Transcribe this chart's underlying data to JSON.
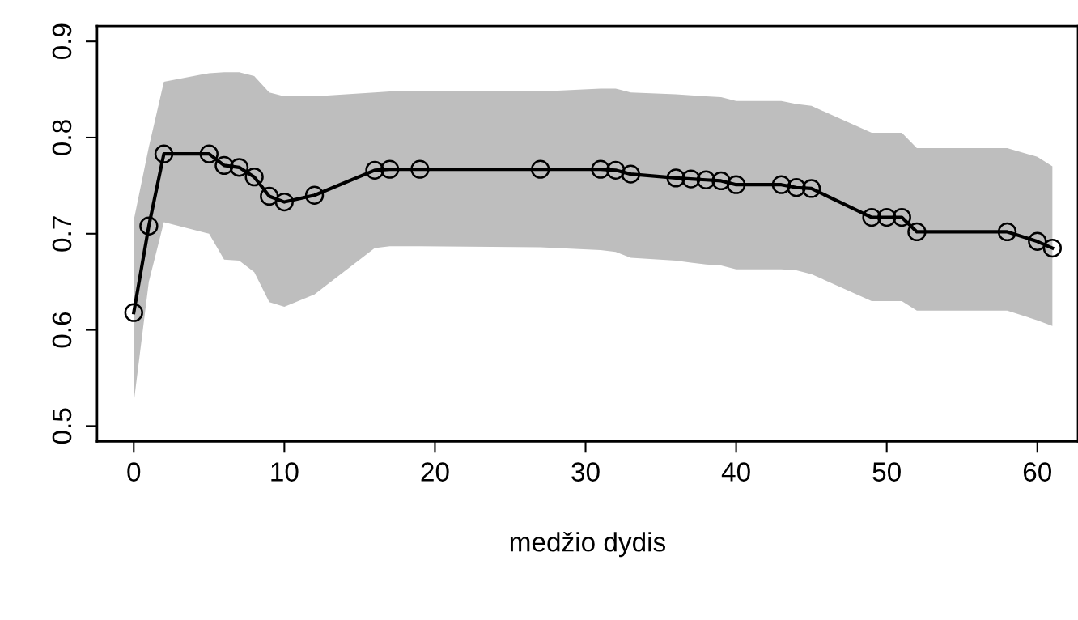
{
  "chart_data": {
    "type": "line",
    "xlabel": "medžio dydis",
    "x": [
      0,
      1,
      2,
      5,
      6,
      7,
      8,
      9,
      10,
      12,
      16,
      17,
      19,
      27,
      31,
      32,
      33,
      36,
      37,
      38,
      39,
      40,
      43,
      44,
      45,
      49,
      50,
      51,
      52,
      58,
      60,
      61
    ],
    "series": [
      {
        "color": "#000000",
        "values": [
          0.618,
          0.708,
          0.783,
          0.783,
          0.771,
          0.769,
          0.759,
          0.739,
          0.733,
          0.74,
          0.766,
          0.767,
          0.767,
          0.767,
          0.767,
          0.766,
          0.762,
          0.758,
          0.757,
          0.756,
          0.755,
          0.751,
          0.751,
          0.748,
          0.747,
          0.717,
          0.717,
          0.717,
          0.702,
          0.702,
          0.692,
          0.685
        ],
        "upper": [
          0.714,
          0.79,
          0.858,
          0.867,
          0.868,
          0.868,
          0.864,
          0.847,
          0.843,
          0.843,
          0.847,
          0.848,
          0.848,
          0.848,
          0.851,
          0.851,
          0.847,
          0.845,
          0.844,
          0.843,
          0.842,
          0.838,
          0.838,
          0.835,
          0.833,
          0.805,
          0.805,
          0.805,
          0.789,
          0.789,
          0.78,
          0.77
        ],
        "lower": [
          0.524,
          0.65,
          0.712,
          0.7,
          0.673,
          0.672,
          0.66,
          0.629,
          0.624,
          0.637,
          0.685,
          0.687,
          0.687,
          0.686,
          0.683,
          0.681,
          0.675,
          0.672,
          0.67,
          0.668,
          0.667,
          0.663,
          0.663,
          0.662,
          0.658,
          0.63,
          0.63,
          0.63,
          0.62,
          0.62,
          0.61,
          0.604
        ]
      }
    ],
    "marker": "circle",
    "line_style": "solid",
    "grid": false,
    "legend": false,
    "xlim": [
      -2.44,
      62.7
    ],
    "ylim": [
      0.484,
      0.916
    ],
    "xticks": [
      0,
      10,
      20,
      30,
      40,
      50,
      60
    ],
    "yticks": [
      0.5,
      0.6,
      0.7,
      0.8,
      0.9
    ]
  }
}
